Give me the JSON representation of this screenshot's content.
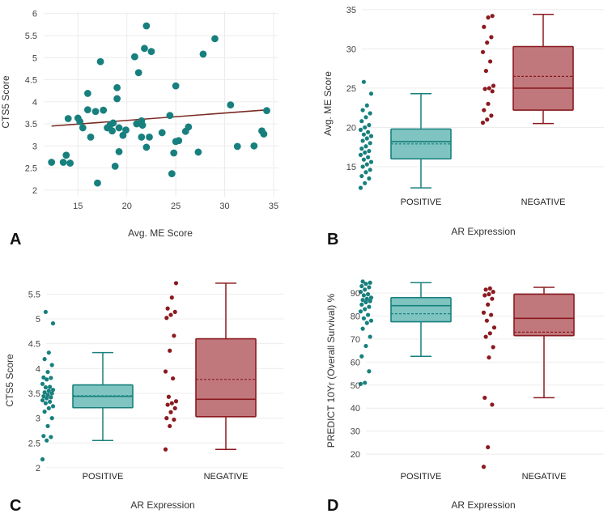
{
  "colors": {
    "positive": "#17807e",
    "positive_fill": "#7fc4c0",
    "negative": "#8b1a1f",
    "negative_fill": "#c0787d",
    "grid": "#ececec",
    "trend": "#7a2a22"
  },
  "chart_data": [
    {
      "panel": "A",
      "type": "scatter",
      "xlabel": "Avg. ME Score",
      "ylabel": "CTS5 Score",
      "xlim": [
        11.5,
        35.5
      ],
      "ylim": [
        1.85,
        6.05
      ],
      "xticks": [
        15,
        20,
        25,
        30,
        35
      ],
      "yticks": [
        2,
        2.5,
        3,
        3.5,
        4,
        4.5,
        5,
        5.5,
        6
      ],
      "grid": true,
      "trendline": {
        "x": [
          12.3,
          34.5
        ],
        "y": [
          3.45,
          3.82
        ]
      },
      "points": [
        [
          12.3,
          2.63
        ],
        [
          13.5,
          2.63
        ],
        [
          13.8,
          2.79
        ],
        [
          14.2,
          2.61
        ],
        [
          14.0,
          3.62
        ],
        [
          15.0,
          3.63
        ],
        [
          15.2,
          3.55
        ],
        [
          15.5,
          3.41
        ],
        [
          16.0,
          4.19
        ],
        [
          16.0,
          3.82
        ],
        [
          16.3,
          3.2
        ],
        [
          16.8,
          3.78
        ],
        [
          17.0,
          2.16
        ],
        [
          17.3,
          4.91
        ],
        [
          17.6,
          3.81
        ],
        [
          18.0,
          3.41
        ],
        [
          18.3,
          3.48
        ],
        [
          18.5,
          3.34
        ],
        [
          18.6,
          3.52
        ],
        [
          18.8,
          2.54
        ],
        [
          19.0,
          4.32
        ],
        [
          19.0,
          4.07
        ],
        [
          19.2,
          3.41
        ],
        [
          19.2,
          2.87
        ],
        [
          19.6,
          3.24
        ],
        [
          19.9,
          3.36
        ],
        [
          20.8,
          5.02
        ],
        [
          21.0,
          3.5
        ],
        [
          21.2,
          4.66
        ],
        [
          21.5,
          3.57
        ],
        [
          21.5,
          3.2
        ],
        [
          21.6,
          3.47
        ],
        [
          21.8,
          5.21
        ],
        [
          22.0,
          5.72
        ],
        [
          22.0,
          2.97
        ],
        [
          22.3,
          3.2
        ],
        [
          22.5,
          5.14
        ],
        [
          23.6,
          3.3
        ],
        [
          24.4,
          3.69
        ],
        [
          24.6,
          2.37
        ],
        [
          24.8,
          2.84
        ],
        [
          25.0,
          4.36
        ],
        [
          25.0,
          3.1
        ],
        [
          25.3,
          3.12
        ],
        [
          26.0,
          3.33
        ],
        [
          26.3,
          3.43
        ],
        [
          27.3,
          2.86
        ],
        [
          27.8,
          5.08
        ],
        [
          29.0,
          5.43
        ],
        [
          30.6,
          3.93
        ],
        [
          31.3,
          2.99
        ],
        [
          33.0,
          3.0
        ],
        [
          33.8,
          3.34
        ],
        [
          34.0,
          3.27
        ],
        [
          34.3,
          3.8
        ]
      ]
    },
    {
      "panel": "B",
      "type": "box",
      "xlabel": "AR Expression",
      "ylabel": "Avg. ME Score",
      "ylim": [
        11.8,
        35.3
      ],
      "yticks": [
        15,
        20,
        25,
        30,
        35
      ],
      "categories": [
        "POSITIVE",
        "NEGATIVE"
      ],
      "boxes": [
        {
          "min": 12.3,
          "q1": 16.0,
          "median": 18.2,
          "q3": 19.8,
          "max": 24.3,
          "mean": 17.9,
          "points": [
            12.3,
            12.9,
            13.5,
            13.8,
            14.3,
            14.6,
            15.0,
            15.3,
            15.6,
            15.9,
            16.2,
            16.5,
            16.8,
            17.0,
            17.3,
            17.6,
            18.0,
            18.3,
            18.6,
            18.9,
            19.1,
            19.4,
            19.7,
            20.0,
            20.3,
            20.8,
            21.3,
            21.8,
            22.2,
            22.8,
            24.3,
            25.8
          ]
        },
        {
          "min": 20.5,
          "q1": 22.2,
          "median": 25.0,
          "q3": 30.3,
          "max": 34.4,
          "mean": 26.5,
          "points": [
            20.6,
            21.0,
            21.5,
            22.2,
            23.0,
            24.6,
            24.9,
            25.0,
            25.3,
            27.2,
            28.4,
            29.6,
            30.8,
            31.5,
            32.8,
            34.0,
            34.2
          ]
        }
      ]
    },
    {
      "panel": "C",
      "type": "box",
      "xlabel": "AR Expression",
      "ylabel": "CTS5 Score",
      "ylim": [
        1.95,
        5.75
      ],
      "yticks": [
        2,
        2.5,
        3,
        3.5,
        4,
        4.5,
        5,
        5.5
      ],
      "categories": [
        "POSITIVE",
        "NEGATIVE"
      ],
      "boxes": [
        {
          "min": 2.55,
          "q1": 3.21,
          "median": 3.44,
          "q3": 3.67,
          "max": 4.32,
          "mean": 3.45,
          "points": [
            2.17,
            2.55,
            2.62,
            2.64,
            2.84,
            3.0,
            3.13,
            3.2,
            3.24,
            3.3,
            3.33,
            3.36,
            3.4,
            3.42,
            3.44,
            3.47,
            3.5,
            3.52,
            3.55,
            3.57,
            3.62,
            3.63,
            3.69,
            3.78,
            3.81,
            3.82,
            3.93,
            4.07,
            4.19,
            4.32,
            4.91,
            5.14
          ]
        },
        {
          "min": 2.37,
          "q1": 3.03,
          "median": 3.38,
          "q3": 4.6,
          "max": 5.72,
          "mean": 3.78,
          "points": [
            2.37,
            2.84,
            2.97,
            3.0,
            3.12,
            3.2,
            3.27,
            3.3,
            3.34,
            3.43,
            3.8,
            3.94,
            4.36,
            4.66,
            5.02,
            5.08,
            5.14,
            5.21,
            5.43,
            5.72
          ]
        }
      ]
    },
    {
      "panel": "D",
      "type": "box",
      "xlabel": "AR Expression",
      "ylabel": "PREDICT 10Yr (Overall Survival) %",
      "ylim": [
        13,
        96
      ],
      "yticks": [
        20,
        30,
        40,
        50,
        60,
        70,
        80,
        90
      ],
      "categories": [
        "POSITIVE",
        "NEGATIVE"
      ],
      "boxes": [
        {
          "min": 62.5,
          "q1": 77.5,
          "median": 84.5,
          "q3": 88.0,
          "max": 94.5,
          "mean": 81.0,
          "points": [
            50.5,
            51.0,
            56.0,
            62.5,
            67.0,
            71.0,
            74.5,
            77.0,
            78.0,
            79.0,
            80.5,
            82.0,
            83.0,
            84.0,
            85.0,
            86.0,
            86.5,
            87.0,
            87.5,
            88.0,
            89.0,
            89.5,
            90.5,
            91.5,
            92.5,
            93.0,
            94.0,
            94.5,
            95.0
          ]
        },
        {
          "min": 44.5,
          "q1": 71.5,
          "median": 79.0,
          "q3": 89.5,
          "max": 92.5,
          "mean": 73.0,
          "points": [
            14.5,
            23.0,
            41.5,
            44.5,
            62.0,
            66.5,
            71.0,
            72.5,
            75.0,
            78.0,
            80.5,
            81.5,
            85.0,
            87.5,
            89.0,
            89.5,
            90.5,
            91.5,
            92.0
          ]
        }
      ]
    }
  ]
}
